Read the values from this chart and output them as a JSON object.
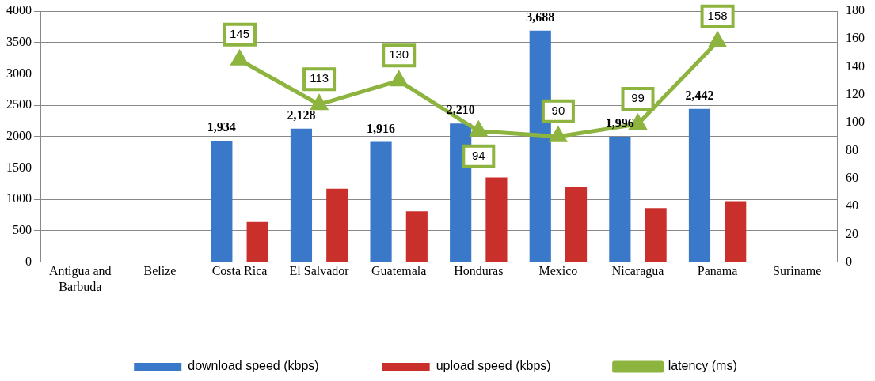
{
  "chart_data": {
    "type": "bar",
    "categories": [
      "Antigua and Barbuda",
      "Belize",
      "Costa Rica",
      "El Salvador",
      "Guatemala",
      "Honduras",
      "Mexico",
      "Nicaragua",
      "Panama",
      "Suriname"
    ],
    "series": [
      {
        "name": "download speed (kbps)",
        "color": "#3a78c9",
        "values": [
          null,
          null,
          1934,
          2128,
          1916,
          2210,
          3688,
          1996,
          2442,
          null
        ],
        "value_labels": [
          null,
          null,
          "1,934",
          "2,128",
          "1,916",
          "2,210",
          "3,688",
          "1,996",
          "2,442",
          null
        ]
      },
      {
        "name": "upload speed (kbps)",
        "color": "#c9302c",
        "values": [
          null,
          null,
          640,
          1170,
          810,
          1350,
          1200,
          860,
          970,
          null
        ]
      },
      {
        "name": "latency (ms)",
        "type": "line",
        "axis": "y2",
        "color": "#8db43e",
        "marker": "triangle",
        "values": [
          null,
          null,
          145,
          113,
          130,
          94,
          90,
          99,
          158,
          null
        ],
        "value_labels": [
          null,
          null,
          "145",
          "113",
          "130",
          "94",
          "90",
          "99",
          "158",
          null
        ]
      }
    ],
    "ylim": [
      0,
      4000
    ],
    "yticks": [
      0,
      500,
      1000,
      1500,
      2000,
      2500,
      3000,
      3500,
      4000
    ],
    "y2lim": [
      0,
      180
    ],
    "y2ticks": [
      0,
      20,
      40,
      60,
      80,
      100,
      120,
      140,
      160,
      180
    ],
    "grid": "y",
    "legend": "bottom"
  }
}
